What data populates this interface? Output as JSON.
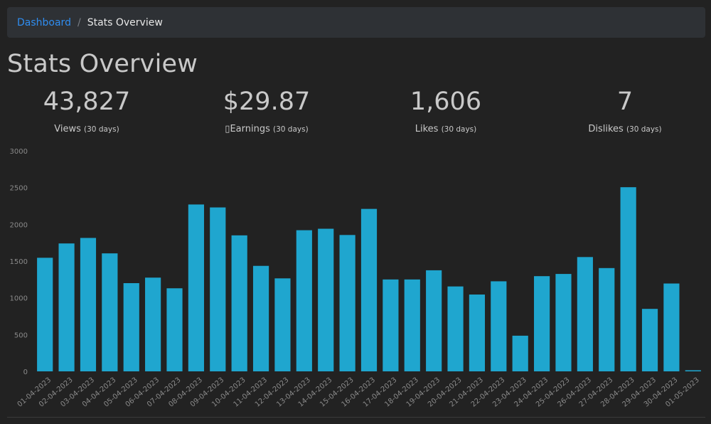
{
  "breadcrumb": {
    "home": "Dashboard",
    "separator": "/",
    "current": "Stats Overview"
  },
  "page_title": "Stats Overview",
  "stats": [
    {
      "value": "43,827",
      "label": "Views",
      "period": "(30 days)"
    },
    {
      "value": "$29.87",
      "label": "▯Earnings",
      "period": "(30 days)"
    },
    {
      "value": "1,606",
      "label": "Likes",
      "period": "(30 days)"
    },
    {
      "value": "7",
      "label": "Dislikes",
      "period": "(30 days)"
    }
  ],
  "colors": {
    "bar": "#1fa6cf",
    "background": "#222222",
    "link": "#2f8df0",
    "axis_text": "#8a8a8a"
  },
  "chart_data": {
    "type": "bar",
    "title": "",
    "xlabel": "",
    "ylabel": "",
    "ylim": [
      0,
      3000
    ],
    "yticks": [
      0,
      500,
      1000,
      1500,
      2000,
      2500,
      3000
    ],
    "grid": false,
    "categories": [
      "01-04-2023",
      "02-04-2023",
      "03-04-2023",
      "04-04-2023",
      "05-04-2023",
      "06-04-2023",
      "07-04-2023",
      "08-04-2023",
      "09-04-2023",
      "10-04-2023",
      "11-04-2023",
      "12-04-2023",
      "13-04-2023",
      "14-04-2023",
      "15-04-2023",
      "16-04-2023",
      "17-04-2023",
      "18-04-2023",
      "19-04-2023",
      "20-04-2023",
      "21-04-2023",
      "22-04-2023",
      "23-04-2023",
      "24-04-2023",
      "25-04-2023",
      "26-04-2023",
      "27-04-2023",
      "28-04-2023",
      "29-04-2023",
      "30-04-2023",
      "01-05-2023"
    ],
    "values": [
      1545,
      1740,
      1815,
      1605,
      1200,
      1275,
      1130,
      2270,
      2230,
      1850,
      1435,
      1265,
      1920,
      1940,
      1855,
      2210,
      1250,
      1250,
      1375,
      1155,
      1045,
      1225,
      485,
      1295,
      1325,
      1555,
      1405,
      2505,
      850,
      1195,
      15
    ]
  }
}
